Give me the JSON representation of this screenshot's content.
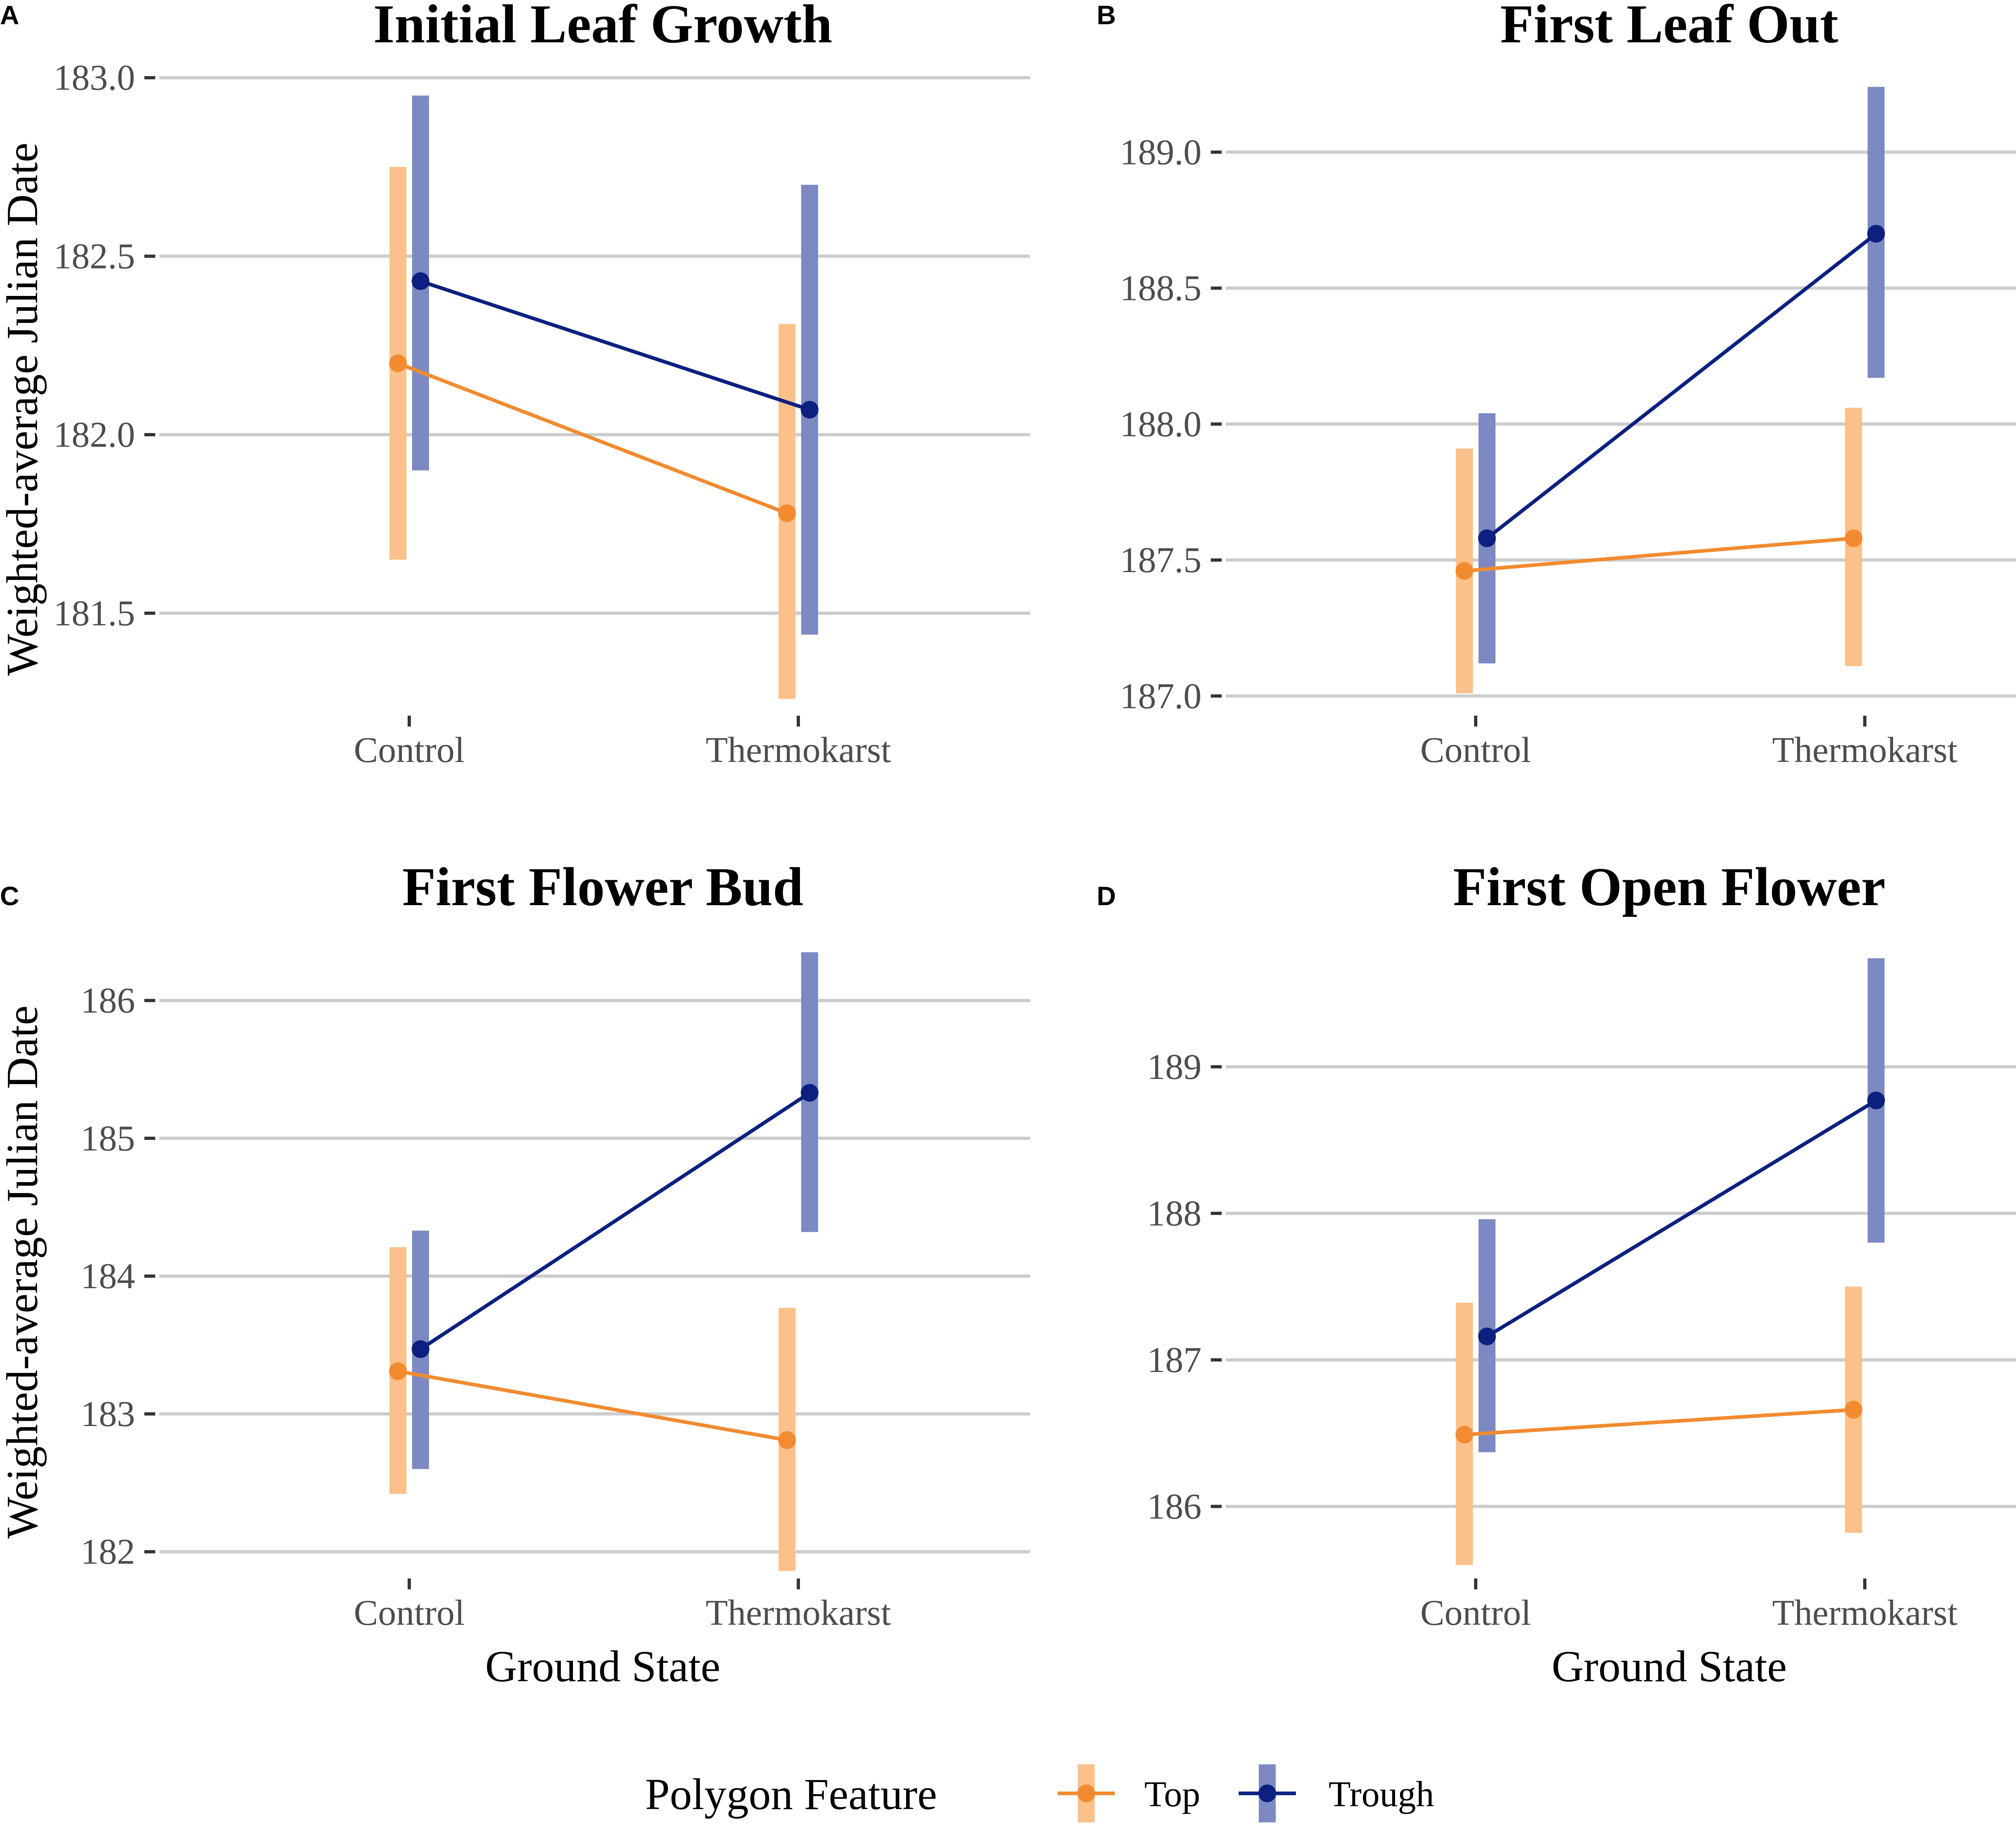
{
  "figure": {
    "xlabel": "Ground State",
    "ylabel": "Weighted-average Julian Date",
    "categories": [
      "Control",
      "Thermokarst"
    ]
  },
  "legend": {
    "title": "Polygon Feature",
    "items": [
      {
        "name": "Top",
        "color": "#F28B30",
        "bar_color": "#FCC08A"
      },
      {
        "name": "Trough",
        "color": "#0C2080",
        "bar_color": "#7C89C2"
      }
    ]
  },
  "chart_data": [
    {
      "letter": "A",
      "title": "Initial Leaf Growth",
      "type": "line",
      "categories": [
        "Control",
        "Thermokarst"
      ],
      "ylim": [
        181.23,
        183.02
      ],
      "yticks": [
        181.5,
        182.0,
        182.5,
        183.0
      ],
      "ytick_labels": [
        "181.5",
        "182.0",
        "182.5",
        "183.0"
      ],
      "series": [
        {
          "name": "Top",
          "values": [
            182.2,
            181.78
          ],
          "lower": [
            181.65,
            181.26
          ],
          "upper": [
            182.75,
            182.31
          ]
        },
        {
          "name": "Trough",
          "values": [
            182.43,
            182.07
          ],
          "lower": [
            181.9,
            181.44
          ],
          "upper": [
            182.95,
            182.7
          ]
        }
      ]
    },
    {
      "letter": "B",
      "title": "First Leaf Out",
      "type": "line",
      "categories": [
        "Control",
        "Thermokarst"
      ],
      "ylim": [
        186.95,
        189.3
      ],
      "yticks": [
        187.0,
        187.5,
        188.0,
        188.5,
        189.0
      ],
      "ytick_labels": [
        "187.0",
        "187.5",
        "188.0",
        "188.5",
        "189.0"
      ],
      "series": [
        {
          "name": "Top",
          "values": [
            187.46,
            187.58
          ],
          "lower": [
            187.01,
            187.11
          ],
          "upper": [
            187.91,
            188.06
          ]
        },
        {
          "name": "Trough",
          "values": [
            187.58,
            188.7
          ],
          "lower": [
            187.12,
            188.17
          ],
          "upper": [
            188.04,
            189.24
          ]
        }
      ]
    },
    {
      "letter": "C",
      "title": "First Flower Bud",
      "type": "line",
      "categories": [
        "Control",
        "Thermokarst"
      ],
      "ylim": [
        181.85,
        186.37
      ],
      "yticks": [
        182,
        183,
        184,
        185,
        186
      ],
      "ytick_labels": [
        "182",
        "183",
        "184",
        "185",
        "186"
      ],
      "series": [
        {
          "name": "Top",
          "values": [
            183.31,
            182.81
          ],
          "lower": [
            182.42,
            181.86
          ],
          "upper": [
            184.21,
            183.77
          ]
        },
        {
          "name": "Trough",
          "values": [
            183.47,
            185.33
          ],
          "lower": [
            182.6,
            184.32
          ],
          "upper": [
            184.33,
            186.35
          ]
        }
      ]
    },
    {
      "letter": "D",
      "title": "First Open Flower",
      "type": "line",
      "categories": [
        "Control",
        "Thermokarst"
      ],
      "ylim": [
        185.55,
        189.8
      ],
      "yticks": [
        186,
        187,
        188,
        189
      ],
      "ytick_labels": [
        "186",
        "187",
        "188",
        "189"
      ],
      "series": [
        {
          "name": "Top",
          "values": [
            186.49,
            186.66
          ],
          "lower": [
            185.6,
            185.82
          ],
          "upper": [
            187.39,
            187.5
          ]
        },
        {
          "name": "Trough",
          "values": [
            187.16,
            188.77
          ],
          "lower": [
            186.37,
            187.8
          ],
          "upper": [
            187.96,
            189.74
          ]
        }
      ]
    }
  ]
}
